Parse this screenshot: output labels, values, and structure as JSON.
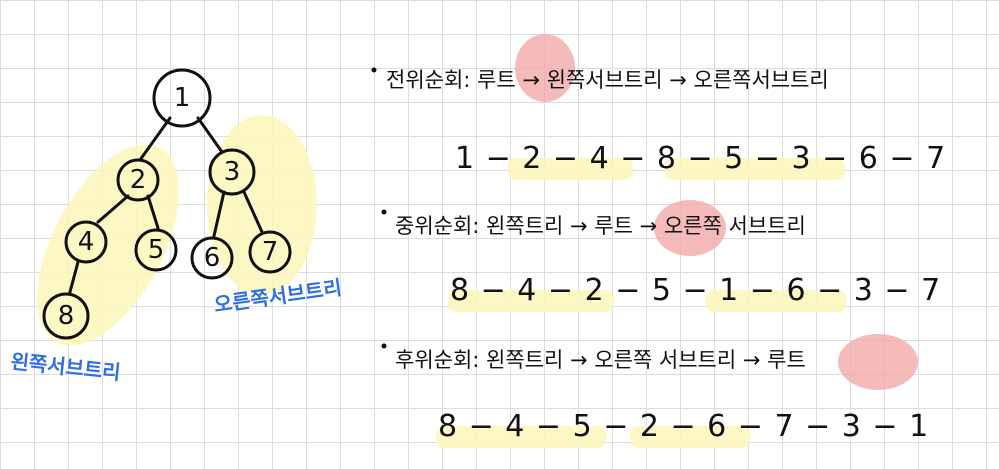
{
  "colors": {
    "ink": "#111111",
    "label_blue": "#2f6fe0",
    "highlight_yellow": "#fdf7b8",
    "highlight_red": "#f3a9a9",
    "grid": "#dcdcdc"
  },
  "tree": {
    "nodes": [
      "1",
      "2",
      "3",
      "4",
      "5",
      "6",
      "7",
      "8"
    ],
    "left_subtree_label": "왼쪽서브트리",
    "right_subtree_label": "오른쪽서브트리"
  },
  "traversals": {
    "preorder": {
      "title": "전위순회",
      "rule_parts": [
        ": ",
        "루트",
        " → ",
        "왼쪽서브트리",
        " → ",
        "오른쪽서브트리"
      ],
      "sequence": "1 − 2 − 4 − 8 − 5 − 3 − 6 − 7"
    },
    "inorder": {
      "title": "중위순회",
      "rule_parts": [
        ": ",
        "왼쪽트리",
        " → ",
        "루트",
        " → ",
        "오른쪽 서브트리"
      ],
      "sequence": "8 − 4 − 2 − 5 − 1 − 6 − 3 − 7"
    },
    "postorder": {
      "title": "후위순회",
      "rule_parts": [
        ": ",
        "왼쪽트리",
        " → ",
        "오른쪽 서브트리",
        " → ",
        "루트"
      ],
      "sequence": "8 − 4 − 5 − 2 − 6 − 7 − 3 − 1"
    }
  }
}
